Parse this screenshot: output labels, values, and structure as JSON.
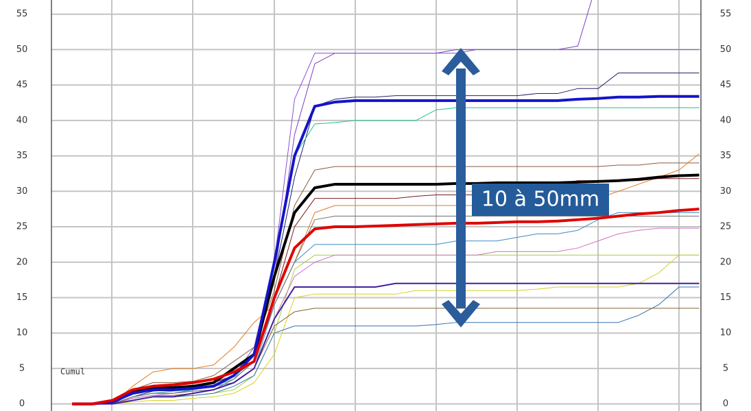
{
  "chart_data": {
    "type": "line",
    "label": "Cumul",
    "annotation": "10 à 50mm",
    "grid": true,
    "categories": [
      null,
      null,
      null,
      null,
      null,
      null,
      null,
      null,
      null,
      null,
      null,
      null,
      null,
      null,
      null,
      null,
      null,
      null,
      null,
      null,
      null,
      null,
      null,
      null,
      null,
      null,
      null,
      null,
      null,
      null,
      null,
      null
    ],
    "ylim": [
      -1,
      57
    ],
    "yticks": [
      0,
      5,
      10,
      15,
      20,
      25,
      30,
      35,
      40,
      45,
      50,
      55
    ],
    "series": [
      {
        "color": "#7a3fc0",
        "width": 1,
        "values": [
          0,
          0,
          0,
          1,
          1.5,
          1.5,
          2,
          2.5,
          3.5,
          6,
          18,
          38,
          48,
          49.5,
          49.5,
          49.5,
          49.5,
          49.5,
          49.5,
          50,
          50,
          50,
          50,
          50,
          50,
          50.5,
          60,
          null,
          null,
          null,
          null,
          null
        ]
      },
      {
        "color": "#8a4fd6",
        "width": 1,
        "values": [
          0,
          0,
          0,
          1.5,
          2,
          2,
          2.5,
          3,
          4,
          8,
          20,
          43,
          49.5,
          49.5,
          49.5,
          49.5,
          49.5,
          49.5,
          49.5,
          49.5,
          50,
          50,
          50,
          50,
          50,
          50,
          50,
          50,
          50,
          50,
          50,
          50
        ]
      },
      {
        "color": "#20206a",
        "width": 1,
        "values": [
          0,
          0,
          0,
          1,
          1.8,
          2,
          2.2,
          2.5,
          4,
          6,
          18,
          32,
          42,
          43,
          43.3,
          43.3,
          43.5,
          43.5,
          43.5,
          43.5,
          43.5,
          43.5,
          43.5,
          43.8,
          43.8,
          44.5,
          44.5,
          46.7,
          46.7,
          46.7,
          46.7,
          46.7
        ]
      },
      {
        "color": "#20c090",
        "width": 1,
        "values": [
          0,
          0,
          0,
          1,
          1.5,
          1.8,
          2,
          2.5,
          3.5,
          7,
          20,
          35,
          39.5,
          39.7,
          40,
          40,
          40,
          40,
          41.5,
          41.8,
          41.8,
          41.8,
          41.8,
          41.8,
          41.8,
          41.8,
          41.8,
          41.8,
          41.8,
          41.8,
          41.8,
          41.8
        ]
      },
      {
        "color": "#8b5a3c",
        "width": 1,
        "values": [
          0,
          0,
          0,
          2,
          3,
          3,
          3.2,
          4,
          6,
          8,
          16,
          28,
          33,
          33.5,
          33.5,
          33.5,
          33.5,
          33.5,
          33.5,
          33.5,
          33.5,
          33.5,
          33.5,
          33.5,
          33.5,
          33.5,
          33.5,
          33.7,
          33.7,
          34,
          34,
          34
        ]
      },
      {
        "color": "#e07820",
        "width": 1,
        "values": [
          0,
          0,
          0,
          2.5,
          4.5,
          5,
          5,
          5.5,
          8,
          11.5,
          14,
          20,
          27,
          28,
          28,
          28,
          28,
          28,
          28,
          28,
          28,
          28,
          28,
          28,
          28,
          28.5,
          29,
          30,
          31,
          32,
          33,
          35.3
        ]
      },
      {
        "color": "#7a1a1a",
        "width": 1,
        "values": [
          0,
          0,
          0,
          1.5,
          2,
          2,
          2.5,
          3,
          4,
          6,
          15,
          25,
          29,
          29,
          29,
          29,
          29,
          29.3,
          29.5,
          29.5,
          29.5,
          30,
          30.5,
          30.5,
          31,
          31.5,
          31.5,
          31.5,
          31.5,
          31.8,
          31.8,
          31.8
        ]
      },
      {
        "color": "#3a8ac0",
        "width": 1,
        "values": [
          0,
          0,
          0,
          1,
          1.5,
          1.5,
          2,
          2.5,
          3,
          5,
          14,
          20,
          22.5,
          22.5,
          22.5,
          22.5,
          22.5,
          22.5,
          22.5,
          23,
          23,
          23,
          23.5,
          24,
          24,
          24.5,
          26,
          27,
          27,
          27,
          27,
          27
        ]
      },
      {
        "color": "#d8d020",
        "width": 1,
        "values": [
          0,
          0,
          0,
          0.3,
          0.5,
          0.5,
          0.8,
          1,
          1.5,
          3,
          7,
          15,
          15.5,
          15.5,
          15.5,
          15.5,
          15.5,
          16,
          16,
          16,
          16,
          16,
          16,
          16.2,
          16.5,
          16.5,
          16.5,
          16.5,
          17,
          18.5,
          21,
          21
        ]
      },
      {
        "color": "#a0d040",
        "width": 1,
        "values": [
          0,
          0,
          0,
          0.5,
          1,
          1,
          1.2,
          1.5,
          2,
          4,
          10,
          19,
          21,
          21,
          21,
          21,
          21,
          21,
          21,
          21,
          21,
          21,
          21,
          21,
          21,
          21,
          21,
          21,
          21,
          21,
          21,
          21
        ]
      },
      {
        "color": "#3070b0",
        "width": 1,
        "values": [
          0,
          0,
          0,
          0.5,
          1,
          1,
          1.2,
          1.5,
          2.5,
          4,
          10,
          11,
          11,
          11,
          11,
          11,
          11,
          11,
          11.2,
          11.5,
          11.5,
          11.5,
          11.5,
          11.5,
          11.5,
          11.5,
          11.5,
          11.5,
          12.5,
          14,
          16.5,
          16.5
        ]
      },
      {
        "color": "#806030",
        "width": 1,
        "values": [
          0,
          0,
          0,
          0.8,
          1.2,
          1.2,
          1.5,
          2,
          3,
          5,
          11,
          13,
          13.5,
          13.5,
          13.5,
          13.5,
          13.5,
          13.5,
          13.5,
          13.5,
          13.5,
          13.5,
          13.5,
          13.5,
          13.5,
          13.5,
          13.5,
          13.5,
          13.5,
          13.5,
          13.5,
          13.5
        ]
      },
      {
        "color": "#d070c0",
        "width": 1,
        "values": [
          0,
          0,
          0,
          0.8,
          1.2,
          1.5,
          1.8,
          2,
          3,
          5,
          12,
          18,
          20,
          21,
          21,
          21,
          21,
          21,
          21,
          21,
          21,
          21.5,
          21.5,
          21.5,
          21.5,
          22,
          23,
          24,
          24.5,
          24.8,
          24.8,
          24.8
        ]
      },
      {
        "color": "#707070",
        "width": 1,
        "values": [
          0,
          0,
          0,
          1,
          1.5,
          1.5,
          1.8,
          2,
          3.5,
          6,
          14,
          20,
          26,
          26.5,
          26.5,
          26.5,
          26.5,
          26.5,
          26.5,
          26.5,
          26.5,
          26.5,
          26.5,
          26.5,
          26.5,
          26.5,
          26.5,
          26.5,
          26.5,
          26.5,
          26.5,
          26.5
        ]
      },
      {
        "color": "#4020a0",
        "width": 2,
        "values": [
          0,
          0,
          0,
          0.5,
          1,
          1,
          1.5,
          2,
          3,
          5,
          12,
          16.5,
          16.5,
          16.5,
          16.5,
          16.5,
          17,
          17,
          17,
          17,
          17,
          17,
          17,
          17,
          17,
          17,
          17,
          17,
          17,
          17,
          17,
          17
        ]
      },
      {
        "color": "#000000",
        "width": 4,
        "values": [
          0,
          0,
          0.3,
          1.8,
          2.2,
          2.3,
          2.5,
          3,
          5,
          7,
          18,
          27,
          30.5,
          31,
          31,
          31,
          31,
          31,
          31,
          31.1,
          31.1,
          31.2,
          31.2,
          31.2,
          31.2,
          31.3,
          31.4,
          31.5,
          31.7,
          32,
          32.2,
          32.3
        ]
      },
      {
        "color": "#1414c8",
        "width": 4,
        "values": [
          0,
          0,
          0.3,
          1.5,
          2,
          2,
          2.2,
          2.5,
          4,
          7,
          20,
          35,
          42,
          42.6,
          42.8,
          42.8,
          42.8,
          42.8,
          42.8,
          42.8,
          42.8,
          42.8,
          42.8,
          42.8,
          42.8,
          43,
          43.1,
          43.3,
          43.3,
          43.4,
          43.4,
          43.4
        ]
      },
      {
        "color": "#e00000",
        "width": 4,
        "values": [
          0,
          0,
          0.5,
          2,
          2.5,
          2.7,
          3,
          3.5,
          4.5,
          6,
          15,
          22,
          24.7,
          25,
          25,
          25.1,
          25.2,
          25.3,
          25.4,
          25.5,
          25.5,
          25.6,
          25.7,
          25.7,
          25.8,
          26,
          26.2,
          26.5,
          26.8,
          27,
          27.3,
          27.5
        ]
      }
    ]
  }
}
